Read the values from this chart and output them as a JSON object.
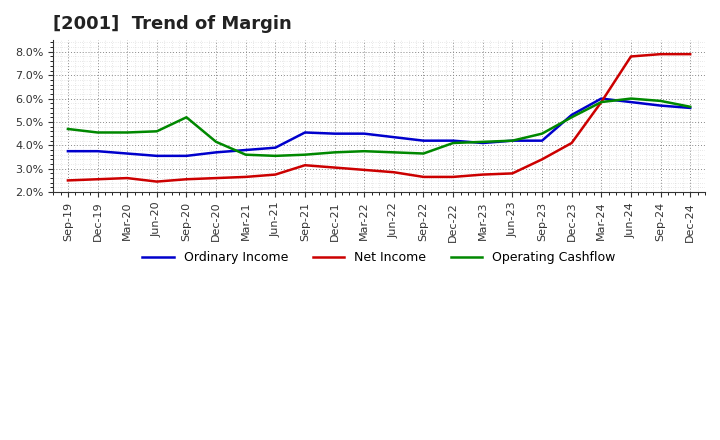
{
  "title": "[2001]  Trend of Margin",
  "x_labels": [
    "Sep-19",
    "Dec-19",
    "Mar-20",
    "Jun-20",
    "Sep-20",
    "Dec-20",
    "Mar-21",
    "Jun-21",
    "Sep-21",
    "Dec-21",
    "Mar-22",
    "Jun-22",
    "Sep-22",
    "Dec-22",
    "Mar-23",
    "Jun-23",
    "Sep-23",
    "Dec-23",
    "Mar-24",
    "Jun-24",
    "Sep-24",
    "Dec-24"
  ],
  "ordinary_income": [
    3.75,
    3.75,
    3.65,
    3.55,
    3.55,
    3.7,
    3.8,
    3.9,
    4.55,
    4.5,
    4.5,
    4.35,
    4.2,
    4.2,
    4.1,
    4.2,
    4.2,
    5.3,
    6.0,
    5.85,
    5.7,
    5.6
  ],
  "net_income": [
    2.5,
    2.55,
    2.6,
    2.45,
    2.55,
    2.6,
    2.65,
    2.75,
    3.15,
    3.05,
    2.95,
    2.85,
    2.65,
    2.65,
    2.75,
    2.8,
    3.4,
    4.1,
    5.85,
    7.8,
    7.9,
    7.9
  ],
  "operating_cashflow": [
    4.7,
    4.55,
    4.55,
    4.6,
    5.2,
    4.15,
    3.6,
    3.55,
    3.6,
    3.7,
    3.75,
    3.7,
    3.65,
    4.1,
    4.15,
    4.2,
    4.5,
    5.2,
    5.85,
    6.0,
    5.9,
    5.65
  ],
  "ordinary_income_color": "#0000cc",
  "net_income_color": "#cc0000",
  "operating_cashflow_color": "#008800",
  "ylim_min": 2.0,
  "ylim_max": 8.5,
  "yticks": [
    2.0,
    3.0,
    4.0,
    5.0,
    6.0,
    7.0,
    8.0
  ],
  "background_color": "#ffffff",
  "grid_color": "#888888",
  "legend_labels": [
    "Ordinary Income",
    "Net Income",
    "Operating Cashflow"
  ],
  "title_fontsize": 13,
  "tick_fontsize": 8,
  "line_width": 1.8
}
